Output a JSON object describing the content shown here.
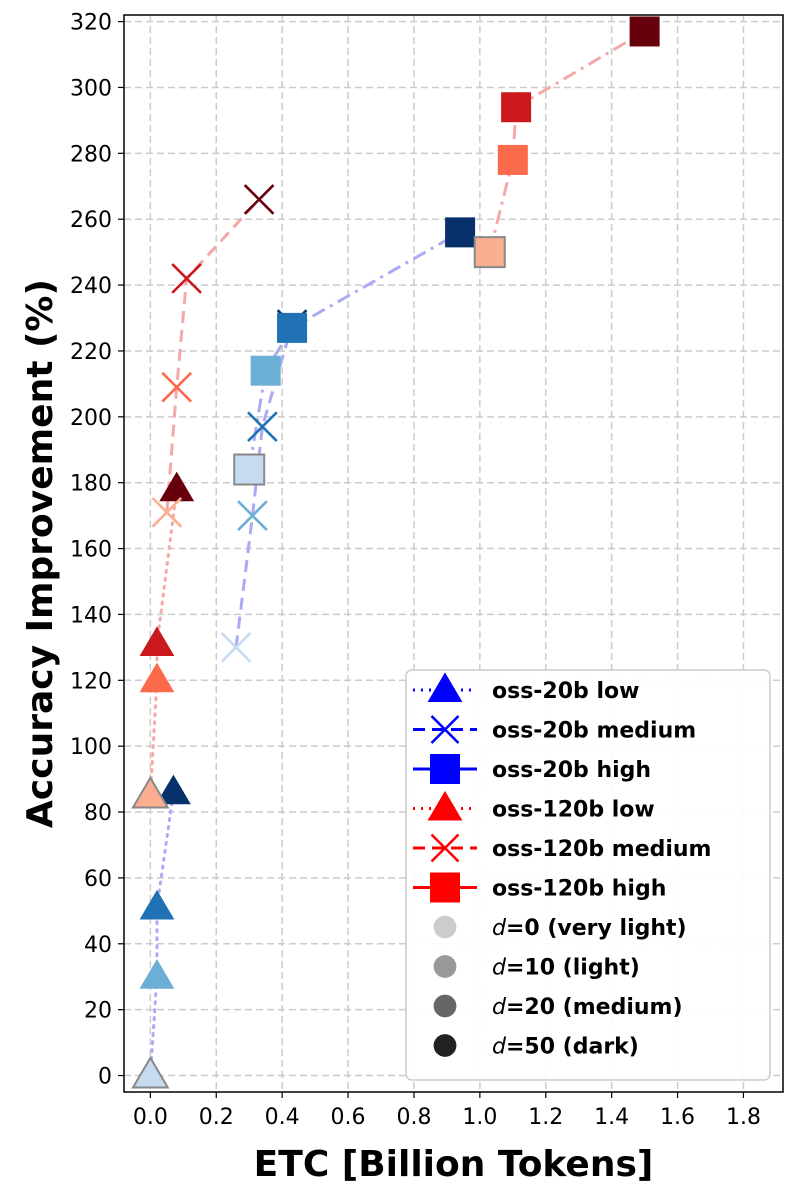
{
  "chart_data": {
    "type": "line",
    "xlabel": "ETC [Billion Tokens]",
    "ylabel": "Accuracy Improvement (%)",
    "xlim": [
      -0.08,
      1.92
    ],
    "ylim": [
      -5,
      322
    ],
    "xticks": [
      0.0,
      0.2,
      0.4,
      0.6,
      0.8,
      1.0,
      1.2,
      1.4,
      1.6,
      1.8
    ],
    "xtick_labels": [
      "0.0",
      "0.2",
      "0.4",
      "0.6",
      "0.8",
      "1.0",
      "1.2",
      "1.4",
      "1.6",
      "1.8"
    ],
    "yticks": [
      0,
      20,
      40,
      60,
      80,
      100,
      120,
      140,
      160,
      180,
      200,
      220,
      240,
      260,
      280,
      300,
      320
    ],
    "ytick_labels": [
      "0",
      "20",
      "40",
      "60",
      "80",
      "100",
      "120",
      "140",
      "160",
      "180",
      "200",
      "220",
      "240",
      "260",
      "280",
      "300",
      "320"
    ],
    "grid": true,
    "legend_position": "lower-right",
    "colors": {
      "blue": [
        "#c6dbef",
        "#6baed6",
        "#2171b5",
        "#08306b"
      ],
      "red": [
        "#fcae91",
        "#fb6a4a",
        "#cb181d",
        "#67000d"
      ],
      "blue_line": "#aaaaf5",
      "red_line": "#f5a8a8",
      "legend_blue": "#0000ff",
      "legend_red": "#ff0000",
      "legend_greys": [
        "#cccccc",
        "#999999",
        "#666666",
        "#222222"
      ],
      "grid": "#cccccc",
      "marker_edge_light": "#888888"
    },
    "series": [
      {
        "name": "oss-20b low",
        "family": "blue",
        "marker": "triangle",
        "linestyle": "dotted",
        "points": [
          {
            "x": 0.0,
            "y": 0
          },
          {
            "x": 0.02,
            "y": 30
          },
          {
            "x": 0.02,
            "y": 51
          },
          {
            "x": 0.07,
            "y": 86
          }
        ],
        "shades": [
          0,
          1,
          2,
          3
        ]
      },
      {
        "name": "oss-20b medium",
        "family": "blue",
        "marker": "x",
        "linestyle": "dashed",
        "points": [
          {
            "x": 0.26,
            "y": 130
          },
          {
            "x": 0.31,
            "y": 170
          },
          {
            "x": 0.34,
            "y": 197
          },
          {
            "x": 0.43,
            "y": 228
          }
        ],
        "shades": [
          0,
          1,
          2,
          3
        ]
      },
      {
        "name": "oss-20b high",
        "family": "blue",
        "marker": "square",
        "linestyle": "dashdot",
        "points": [
          {
            "x": 0.3,
            "y": 184
          },
          {
            "x": 0.35,
            "y": 214
          },
          {
            "x": 0.43,
            "y": 227
          },
          {
            "x": 0.94,
            "y": 256
          }
        ],
        "shades": [
          0,
          1,
          2,
          3
        ]
      },
      {
        "name": "oss-120b low",
        "family": "red",
        "marker": "triangle",
        "linestyle": "dotted",
        "points": [
          {
            "x": 0.0,
            "y": 85
          },
          {
            "x": 0.02,
            "y": 120
          },
          {
            "x": 0.02,
            "y": 131
          },
          {
            "x": 0.08,
            "y": 178
          }
        ],
        "shades": [
          0,
          1,
          2,
          3
        ]
      },
      {
        "name": "oss-120b medium",
        "family": "red",
        "marker": "x",
        "linestyle": "dashed",
        "points": [
          {
            "x": 0.05,
            "y": 171
          },
          {
            "x": 0.08,
            "y": 209
          },
          {
            "x": 0.11,
            "y": 242
          },
          {
            "x": 0.33,
            "y": 266
          }
        ],
        "shades": [
          0,
          1,
          2,
          3
        ]
      },
      {
        "name": "oss-120b high",
        "family": "red",
        "marker": "square",
        "linestyle": "dashdot",
        "points": [
          {
            "x": 1.03,
            "y": 250
          },
          {
            "x": 1.1,
            "y": 278
          },
          {
            "x": 1.11,
            "y": 294
          },
          {
            "x": 1.5,
            "y": 317
          }
        ],
        "shades": [
          0,
          1,
          2,
          3
        ]
      }
    ],
    "legend": [
      {
        "label": "oss-20b low",
        "kind": "series",
        "family": "blue",
        "marker": "triangle",
        "linestyle": "dotted"
      },
      {
        "label": "oss-20b medium",
        "kind": "series",
        "family": "blue",
        "marker": "x",
        "linestyle": "dashed"
      },
      {
        "label": "oss-20b high",
        "kind": "series",
        "family": "blue",
        "marker": "square",
        "linestyle": "solid"
      },
      {
        "label": "oss-120b low",
        "kind": "series",
        "family": "red",
        "marker": "triangle",
        "linestyle": "dotted"
      },
      {
        "label": "oss-120b medium",
        "kind": "series",
        "family": "red",
        "marker": "x",
        "linestyle": "dashed"
      },
      {
        "label": "oss-120b high",
        "kind": "series",
        "family": "red",
        "marker": "square",
        "linestyle": "solid"
      },
      {
        "label_prefix": "d",
        "label_suffix": "=0 (very light)",
        "kind": "shade",
        "shade": 0
      },
      {
        "label_prefix": "d",
        "label_suffix": "=10 (light)",
        "kind": "shade",
        "shade": 1
      },
      {
        "label_prefix": "d",
        "label_suffix": "=20 (medium)",
        "kind": "shade",
        "shade": 2
      },
      {
        "label_prefix": "d",
        "label_suffix": "=50 (dark)",
        "kind": "shade",
        "shade": 3
      }
    ]
  }
}
